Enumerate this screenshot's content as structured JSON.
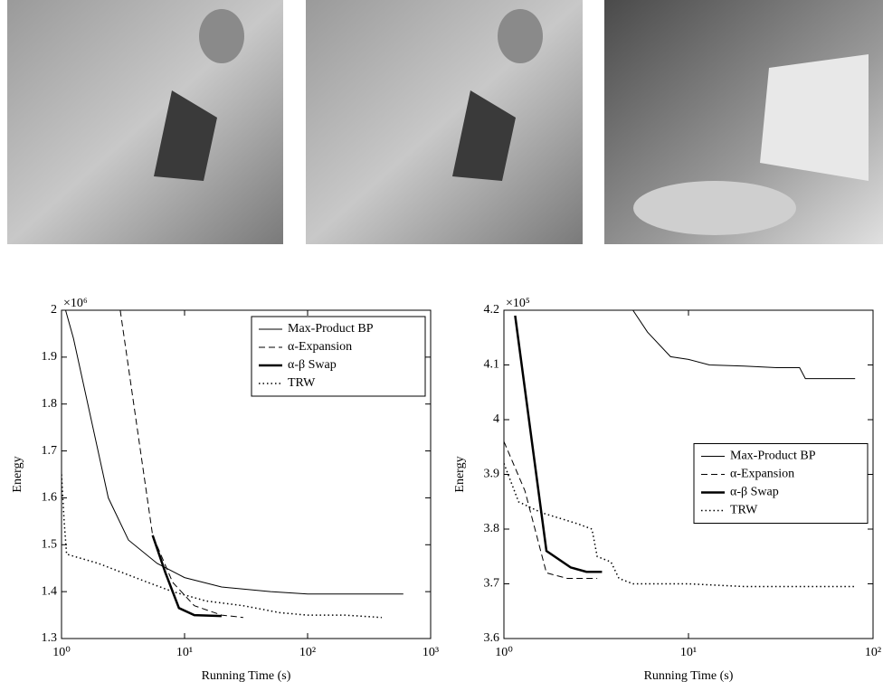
{
  "chart_data": [
    {
      "type": "line",
      "xscale": "log",
      "ylabel": "Energy",
      "xlabel": "Running Time (s)",
      "multiplier": "×10⁶",
      "xlim": [
        1,
        1000
      ],
      "ylim": [
        1.3,
        2
      ],
      "xticks": [
        {
          "value": 1,
          "label": "10⁰"
        },
        {
          "value": 10,
          "label": "10¹"
        },
        {
          "value": 100,
          "label": "10²"
        },
        {
          "value": 1000,
          "label": "10³"
        }
      ],
      "yticks": [
        1.3,
        1.4,
        1.5,
        1.6,
        1.7,
        1.8,
        1.9,
        2
      ],
      "legend": "upper right",
      "series": [
        {
          "name": "Max-Product BP",
          "color": "#000000",
          "dash": "solid",
          "width": 1,
          "x": [
            1.08,
            1.25,
            2.4,
            3.5,
            6,
            10,
            20,
            50,
            100,
            600
          ],
          "values": [
            2.0,
            1.94,
            1.6,
            1.51,
            1.46,
            1.43,
            1.41,
            1.4,
            1.395,
            1.395
          ]
        },
        {
          "name": "α-Expansion",
          "color": "#000000",
          "dash": "dashed",
          "width": 1,
          "x": [
            3.0,
            5.5,
            8,
            12,
            20,
            30
          ],
          "values": [
            2.0,
            1.52,
            1.42,
            1.37,
            1.35,
            1.345
          ]
        },
        {
          "name": "α-β Swap",
          "color": "#000000",
          "dash": "solid",
          "width": 2.5,
          "x": [
            5.5,
            7,
            9,
            12,
            20
          ],
          "values": [
            1.52,
            1.44,
            1.365,
            1.35,
            1.348
          ]
        },
        {
          "name": "TRW",
          "color": "#000000",
          "dash": "dotted",
          "width": 1.5,
          "x": [
            1.0,
            1.05,
            1.1,
            2,
            5,
            8,
            15,
            30,
            60,
            100,
            200,
            400
          ],
          "values": [
            1.65,
            1.55,
            1.48,
            1.46,
            1.42,
            1.4,
            1.38,
            1.37,
            1.355,
            1.35,
            1.35,
            1.345
          ]
        }
      ]
    },
    {
      "type": "line",
      "xscale": "log",
      "ylabel": "Energy",
      "xlabel": "Running Time (s)",
      "multiplier": "×10⁵",
      "xlim": [
        1,
        100
      ],
      "ylim": [
        3.6,
        4.2
      ],
      "xticks": [
        {
          "value": 1,
          "label": "10⁰"
        },
        {
          "value": 10,
          "label": "10¹"
        },
        {
          "value": 100,
          "label": "10²"
        }
      ],
      "yticks": [
        3.6,
        3.7,
        3.8,
        3.9,
        4,
        4.1,
        4.2
      ],
      "legend": "center right",
      "series": [
        {
          "name": "Max-Product BP",
          "color": "#000000",
          "dash": "solid",
          "width": 1,
          "x": [
            5,
            6,
            8,
            10,
            13,
            20,
            30,
            40,
            43,
            80
          ],
          "values": [
            4.2,
            4.16,
            4.115,
            4.11,
            4.1,
            4.098,
            4.095,
            4.095,
            4.075,
            4.075
          ]
        },
        {
          "name": "α-Expansion",
          "color": "#000000",
          "dash": "dashed",
          "width": 1,
          "x": [
            1.0,
            1.3,
            1.7,
            2.2,
            3.2
          ],
          "values": [
            3.96,
            3.87,
            3.72,
            3.71,
            3.71
          ]
        },
        {
          "name": "α-β Swap",
          "color": "#000000",
          "dash": "solid",
          "width": 2.5,
          "x": [
            1.15,
            1.7,
            2.3,
            2.8,
            3.4
          ],
          "values": [
            4.19,
            3.76,
            3.73,
            3.722,
            3.722
          ]
        },
        {
          "name": "TRW",
          "color": "#000000",
          "dash": "dotted",
          "width": 1.5,
          "x": [
            1.0,
            1.2,
            1.6,
            2.5,
            3.0,
            3.2,
            3.8,
            4.2,
            5,
            10,
            20,
            80
          ],
          "values": [
            3.92,
            3.85,
            3.83,
            3.81,
            3.8,
            3.75,
            3.74,
            3.71,
            3.7,
            3.7,
            3.695,
            3.695
          ]
        }
      ]
    }
  ]
}
